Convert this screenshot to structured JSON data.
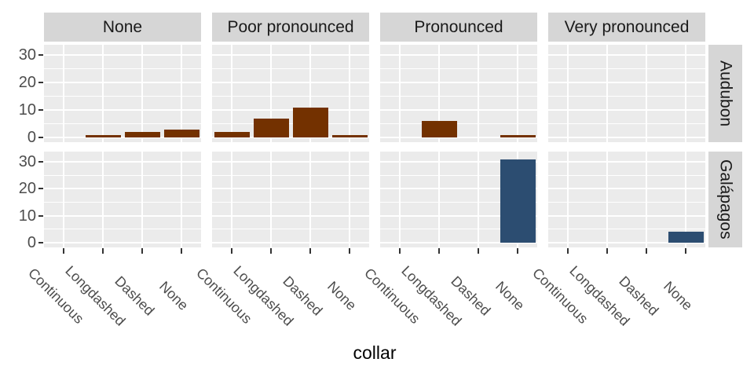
{
  "chart_data": {
    "type": "bar",
    "title": "",
    "xlabel": "collar",
    "ylabel": "",
    "categories": [
      "Continuous",
      "Longdashed",
      "Dashed",
      "None"
    ],
    "col_facets": [
      "None",
      "Poor pronounced",
      "Pronounced",
      "Very pronounced"
    ],
    "row_facets": [
      {
        "label": "Audubon",
        "color": "#733100"
      },
      {
        "label": "Galápagos",
        "color": "#2C4D71"
      }
    ],
    "y_ticks": [
      0,
      10,
      20,
      30
    ],
    "y_minor_ticks": [
      5,
      15,
      25
    ],
    "ylim": [
      0,
      32.5
    ],
    "legend": "none",
    "grid": "white major+minor horizontal lines; white vertical lines at category centers",
    "cells": [
      {
        "row": "Audubon",
        "col": "None",
        "values": [
          0,
          1,
          2,
          3
        ]
      },
      {
        "row": "Audubon",
        "col": "Poor pronounced",
        "values": [
          2,
          7,
          11,
          1
        ]
      },
      {
        "row": "Audubon",
        "col": "Pronounced",
        "values": [
          0,
          6,
          0,
          1
        ]
      },
      {
        "row": "Audubon",
        "col": "Very pronounced",
        "values": [
          0,
          0,
          0,
          0
        ]
      },
      {
        "row": "Galápagos",
        "col": "None",
        "values": [
          0,
          0,
          0,
          0
        ]
      },
      {
        "row": "Galápagos",
        "col": "Poor pronounced",
        "values": [
          0,
          0,
          0,
          0
        ]
      },
      {
        "row": "Galápagos",
        "col": "Pronounced",
        "values": [
          0,
          0,
          0,
          31
        ]
      },
      {
        "row": "Galápagos",
        "col": "Very pronounced",
        "values": [
          0,
          0,
          0,
          4
        ]
      }
    ],
    "colors": {
      "panel_bg": "#EBEBEB",
      "strip_bg": "#D6D6D6",
      "gridline": "#FFFFFF",
      "axis_text": "#4D4D4D",
      "strip_text": "#1A1A1A",
      "tick_mark": "#333333",
      "bar_audubon": "#733100",
      "bar_galapagos": "#2C4D71"
    }
  }
}
